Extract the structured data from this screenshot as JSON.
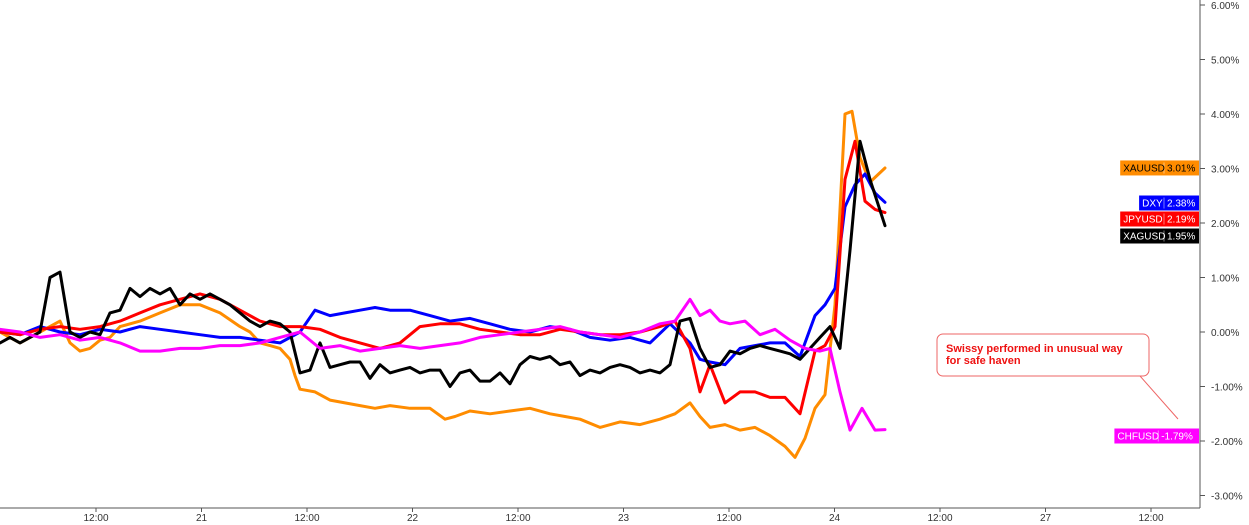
{
  "chart_data": {
    "type": "line",
    "x_labels": [
      "12:00",
      "21",
      "12:00",
      "22",
      "12:00",
      "23",
      "12:00",
      "24",
      "12:00",
      "27",
      "12:00"
    ],
    "y_axis": {
      "min": -3.0,
      "max": 6.0,
      "ticks": [
        6,
        5,
        4,
        3,
        2,
        1,
        0,
        -1,
        -2,
        -3
      ],
      "tick_labels": [
        "6.00%",
        "5.00%",
        "4.00%",
        "3.00%",
        "2.00%",
        "1.00%",
        "0.00%",
        "-1.00%",
        "-2.00%",
        "-3.00%"
      ],
      "position": "right"
    },
    "grid": false,
    "x_range": [
      0,
      1190
    ],
    "series": [
      {
        "name": "XAUUSD",
        "color": "#ff8c00",
        "last_label": "3.01%",
        "x": [
          0,
          20,
          40,
          60,
          70,
          80,
          90,
          100,
          110,
          120,
          140,
          160,
          180,
          200,
          220,
          240,
          250,
          260,
          270,
          280,
          290,
          295,
          300,
          315,
          330,
          345,
          360,
          375,
          390,
          410,
          430,
          445,
          455,
          470,
          490,
          510,
          530,
          550,
          565,
          580,
          600,
          620,
          640,
          660,
          675,
          690,
          700,
          710,
          725,
          740,
          755,
          770,
          785,
          795,
          805,
          815,
          825,
          835,
          845,
          852,
          860,
          870,
          885
        ],
        "y": [
          0.0,
          -0.2,
          0.0,
          0.2,
          -0.2,
          -0.35,
          -0.3,
          -0.15,
          -0.1,
          0.1,
          0.2,
          0.35,
          0.5,
          0.5,
          0.35,
          0.1,
          0.0,
          -0.2,
          -0.25,
          -0.3,
          -0.5,
          -0.8,
          -1.05,
          -1.1,
          -1.25,
          -1.3,
          -1.35,
          -1.4,
          -1.35,
          -1.4,
          -1.4,
          -1.6,
          -1.55,
          -1.45,
          -1.5,
          -1.45,
          -1.4,
          -1.5,
          -1.55,
          -1.6,
          -1.75,
          -1.65,
          -1.7,
          -1.6,
          -1.5,
          -1.3,
          -1.55,
          -1.75,
          -1.7,
          -1.8,
          -1.75,
          -1.9,
          -2.1,
          -2.3,
          -1.95,
          -1.4,
          -1.15,
          0.5,
          4.0,
          4.05,
          3.2,
          2.75,
          3.01
        ]
      },
      {
        "name": "DXY",
        "color": "#0000ff",
        "last_label": "2.38%",
        "x": [
          0,
          20,
          40,
          60,
          80,
          100,
          120,
          140,
          160,
          180,
          200,
          220,
          240,
          260,
          280,
          300,
          315,
          330,
          345,
          360,
          375,
          390,
          410,
          430,
          450,
          470,
          490,
          510,
          530,
          550,
          570,
          590,
          610,
          630,
          650,
          670,
          690,
          700,
          710,
          725,
          740,
          755,
          770,
          785,
          800,
          815,
          825,
          835,
          845,
          855,
          865,
          875,
          885
        ],
        "y": [
          0.0,
          -0.05,
          0.1,
          0.0,
          -0.05,
          0.05,
          0.0,
          0.1,
          0.05,
          0.0,
          -0.05,
          -0.1,
          -0.1,
          -0.15,
          -0.2,
          0.0,
          0.4,
          0.3,
          0.35,
          0.4,
          0.45,
          0.4,
          0.4,
          0.3,
          0.2,
          0.25,
          0.15,
          0.05,
          0.0,
          0.1,
          0.05,
          -0.1,
          -0.15,
          -0.1,
          -0.2,
          0.15,
          -0.2,
          -0.5,
          -0.55,
          -0.6,
          -0.3,
          -0.25,
          -0.2,
          -0.2,
          -0.45,
          0.3,
          0.5,
          0.8,
          2.3,
          2.7,
          2.9,
          2.55,
          2.38
        ]
      },
      {
        "name": "JPYUSD",
        "color": "#ff0000",
        "last_label": "2.19%",
        "x": [
          0,
          20,
          40,
          60,
          80,
          100,
          120,
          140,
          160,
          180,
          200,
          220,
          240,
          260,
          280,
          300,
          320,
          340,
          360,
          380,
          400,
          420,
          440,
          460,
          480,
          500,
          520,
          540,
          560,
          580,
          600,
          620,
          640,
          660,
          675,
          690,
          700,
          710,
          725,
          740,
          755,
          770,
          785,
          800,
          815,
          825,
          835,
          845,
          855,
          865,
          875,
          885
        ],
        "y": [
          0.0,
          -0.05,
          0.05,
          0.1,
          0.05,
          0.1,
          0.2,
          0.35,
          0.5,
          0.6,
          0.7,
          0.6,
          0.4,
          0.2,
          0.1,
          0.1,
          0.05,
          -0.1,
          -0.2,
          -0.3,
          -0.2,
          0.1,
          0.15,
          0.15,
          0.05,
          0.0,
          -0.05,
          -0.05,
          0.05,
          0.0,
          -0.05,
          -0.05,
          0.0,
          0.1,
          0.2,
          -0.3,
          -1.1,
          -0.6,
          -1.3,
          -1.1,
          -1.1,
          -1.2,
          -1.2,
          -1.5,
          -0.35,
          -0.25,
          0.1,
          2.8,
          3.5,
          2.4,
          2.25,
          2.19
        ]
      },
      {
        "name": "XAGUSD",
        "color": "#000000",
        "last_label": "1.95%",
        "x": [
          0,
          10,
          20,
          30,
          40,
          50,
          60,
          70,
          80,
          90,
          100,
          110,
          120,
          130,
          140,
          150,
          160,
          170,
          180,
          190,
          200,
          210,
          220,
          230,
          240,
          250,
          260,
          270,
          280,
          290,
          300,
          310,
          320,
          330,
          340,
          350,
          360,
          370,
          380,
          390,
          400,
          410,
          420,
          430,
          440,
          450,
          460,
          470,
          480,
          490,
          500,
          510,
          520,
          530,
          540,
          550,
          560,
          570,
          580,
          590,
          600,
          610,
          620,
          630,
          640,
          650,
          660,
          670,
          680,
          690,
          700,
          710,
          720,
          730,
          740,
          750,
          760,
          770,
          780,
          790,
          800,
          810,
          820,
          830,
          840,
          850,
          860,
          870,
          885
        ],
        "y": [
          -0.2,
          -0.1,
          -0.2,
          -0.1,
          0.0,
          1.0,
          1.1,
          0.0,
          -0.1,
          0.0,
          -0.05,
          0.35,
          0.4,
          0.8,
          0.65,
          0.8,
          0.7,
          0.8,
          0.5,
          0.7,
          0.6,
          0.7,
          0.6,
          0.5,
          0.35,
          0.2,
          0.1,
          0.2,
          0.15,
          0.0,
          -0.75,
          -0.7,
          -0.2,
          -0.65,
          -0.6,
          -0.55,
          -0.55,
          -0.85,
          -0.6,
          -0.75,
          -0.7,
          -0.65,
          -0.75,
          -0.7,
          -0.7,
          -1.0,
          -0.75,
          -0.7,
          -0.9,
          -0.9,
          -0.75,
          -0.95,
          -0.6,
          -0.45,
          -0.5,
          -0.45,
          -0.6,
          -0.55,
          -0.8,
          -0.7,
          -0.75,
          -0.65,
          -0.6,
          -0.65,
          -0.75,
          -0.7,
          -0.75,
          -0.6,
          0.2,
          0.25,
          -0.3,
          -0.65,
          -0.6,
          -0.35,
          -0.4,
          -0.3,
          -0.25,
          -0.3,
          -0.35,
          -0.4,
          -0.5,
          -0.3,
          -0.1,
          0.1,
          -0.3,
          1.5,
          3.5,
          2.8,
          1.95
        ]
      },
      {
        "name": "CHFUSD",
        "color": "#ff00ff",
        "last_label": "-1.79%",
        "x": [
          0,
          20,
          40,
          60,
          80,
          100,
          120,
          140,
          160,
          180,
          200,
          220,
          240,
          260,
          280,
          300,
          320,
          340,
          360,
          380,
          400,
          420,
          440,
          460,
          480,
          500,
          520,
          540,
          560,
          580,
          600,
          620,
          640,
          660,
          675,
          690,
          700,
          710,
          720,
          730,
          745,
          760,
          775,
          790,
          805,
          820,
          830,
          840,
          850,
          862,
          875,
          885
        ],
        "y": [
          0.05,
          0.0,
          -0.1,
          -0.05,
          -0.15,
          -0.1,
          -0.2,
          -0.35,
          -0.35,
          -0.3,
          -0.3,
          -0.25,
          -0.25,
          -0.2,
          -0.1,
          0.0,
          -0.3,
          -0.25,
          -0.35,
          -0.3,
          -0.25,
          -0.3,
          -0.25,
          -0.2,
          -0.1,
          -0.05,
          0.0,
          0.05,
          0.1,
          0.0,
          -0.05,
          -0.1,
          0.0,
          0.15,
          0.2,
          0.6,
          0.3,
          0.4,
          0.2,
          0.15,
          0.2,
          -0.05,
          0.05,
          -0.15,
          -0.3,
          -0.35,
          -0.3,
          -1.1,
          -1.8,
          -1.4,
          -1.8,
          -1.79
        ]
      }
    ],
    "annotation": {
      "text_line1": "Swissy performed in unusual way",
      "text_line2": "for safe haven"
    }
  }
}
